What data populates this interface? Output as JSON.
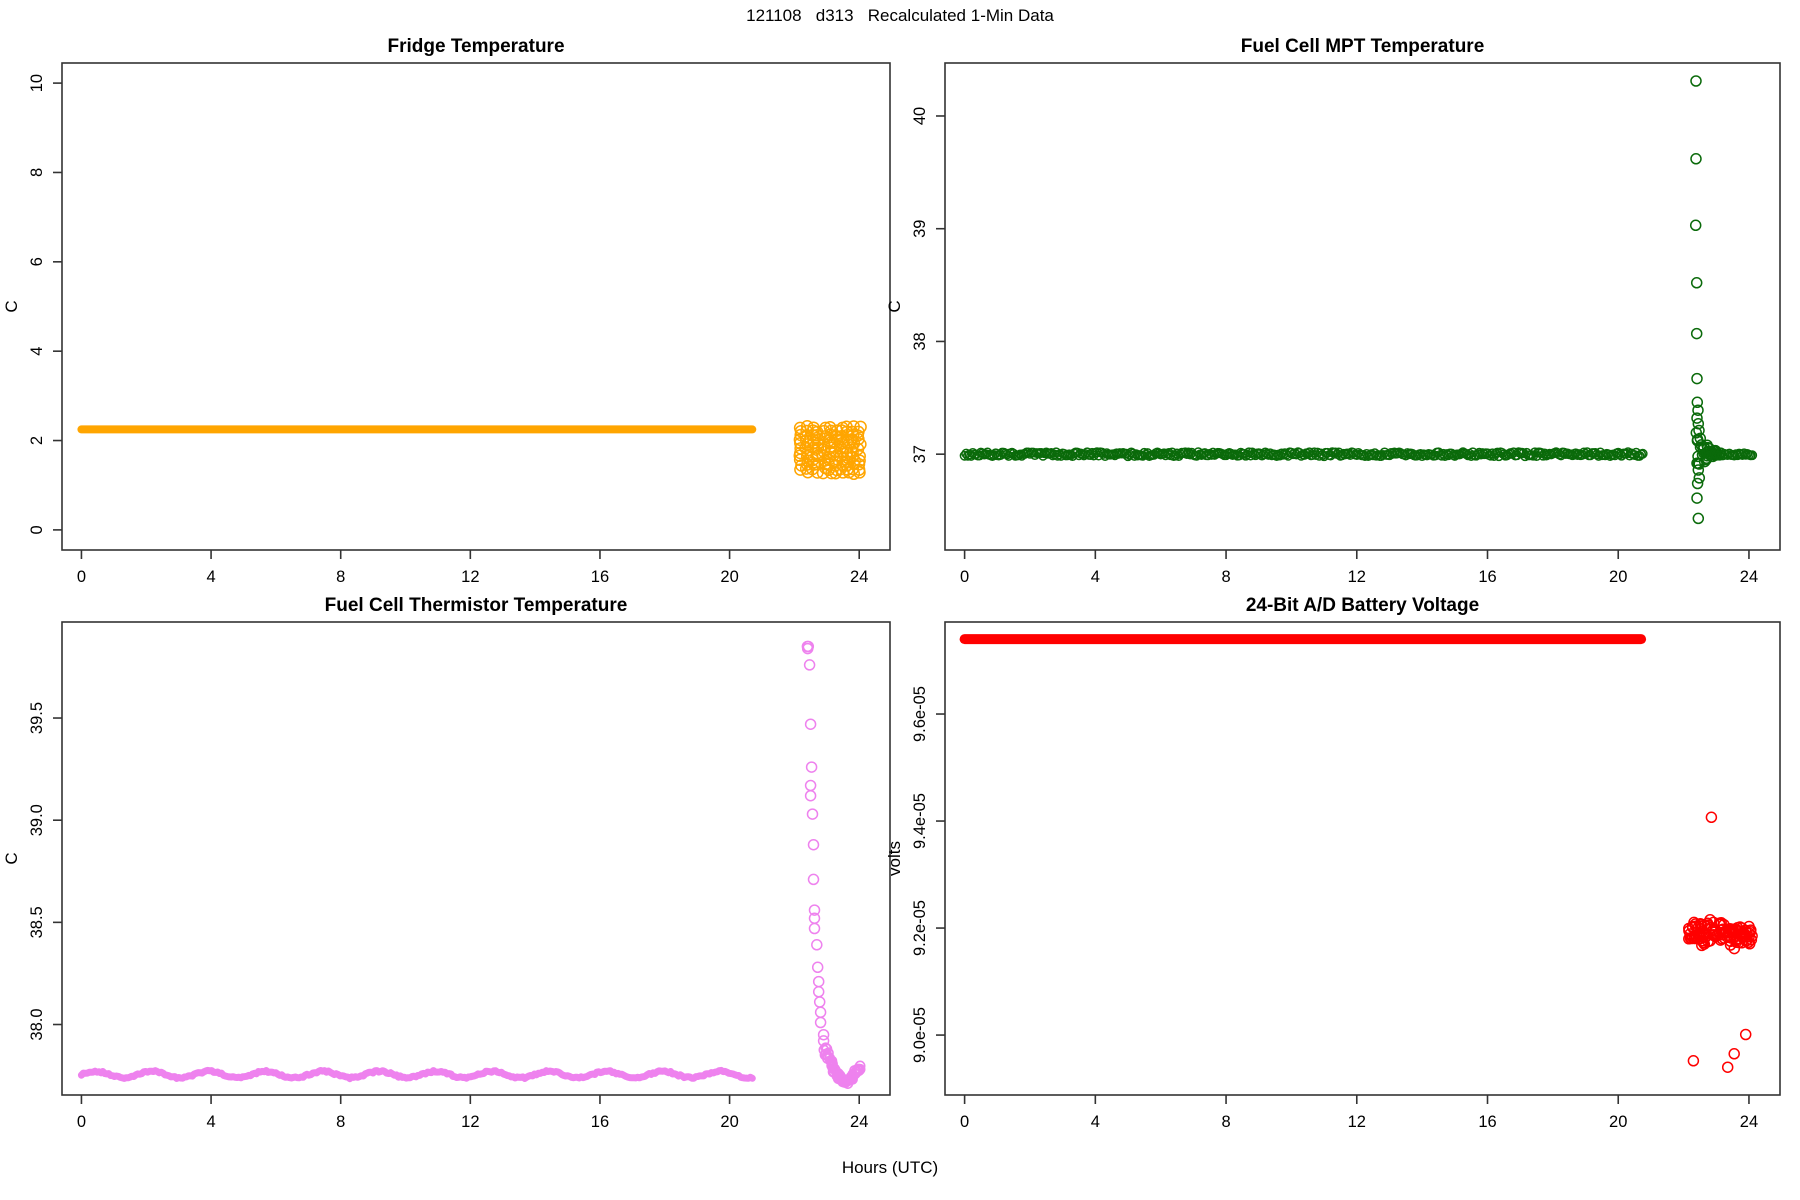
{
  "figure": {
    "title": "121108   d313   Recalculated 1-Min Data",
    "x_axis_label": "Hours (UTC)"
  },
  "x_axis": {
    "ticks": [
      0,
      4,
      8,
      12,
      16,
      20,
      24
    ],
    "xlim": [
      -0.6,
      24.95
    ]
  },
  "chart_data": [
    {
      "id": "fridge-temperature",
      "type": "scatter",
      "title": "Fridge Temperature",
      "ylabel": "C",
      "xlabel": "Hours (UTC)",
      "color": "#FFA500",
      "ylim": [
        -0.45,
        10.45
      ],
      "yticks": [
        0,
        2,
        4,
        6,
        8,
        10
      ],
      "ytick_labels": [
        "0",
        "2",
        "4",
        "6",
        "8",
        "10"
      ],
      "grid": false,
      "series": [
        {
          "name": "steady-line",
          "kind": "thick-line",
          "value": 2.25,
          "x_start": 0,
          "x_end": 20.7,
          "stroke_px": 8
        },
        {
          "name": "late-scatter-block",
          "kind": "cluster",
          "layout": "grid",
          "x_start": 22.2,
          "x_end": 24.0,
          "y_min": 1.27,
          "y_max": 2.3,
          "rows": 12,
          "n": 132,
          "r": 5.5
        }
      ]
    },
    {
      "id": "fuel-cell-mpt-temperature",
      "type": "scatter",
      "title": "Fuel Cell MPT Temperature",
      "ylabel": "C",
      "xlabel": "Hours (UTC)",
      "color": "#0A6A0A",
      "ylim": [
        36.15,
        40.47
      ],
      "yticks": [
        37,
        38,
        39,
        40
      ],
      "ytick_labels": [
        "37",
        "38",
        "39",
        "40"
      ],
      "grid": false,
      "series": [
        {
          "name": "steady-ring-line",
          "kind": "ring-line",
          "value": 37.0,
          "x_start": 0,
          "x_end": 20.8,
          "jitter": 0.018,
          "r": 4.2
        },
        {
          "name": "excursion-points",
          "kind": "points",
          "open": true,
          "r": 5,
          "pts": [
            [
              22.38,
              40.31
            ],
            [
              22.38,
              39.62
            ],
            [
              22.37,
              39.03
            ],
            [
              22.4,
              38.52
            ],
            [
              22.4,
              38.07
            ],
            [
              22.41,
              37.67
            ],
            [
              22.42,
              37.46
            ],
            [
              22.44,
              37.39
            ],
            [
              22.41,
              37.32
            ],
            [
              22.45,
              37.27
            ],
            [
              22.39,
              37.19
            ],
            [
              22.43,
              37.13
            ],
            [
              22.47,
              37.21
            ],
            [
              22.51,
              37.14
            ],
            [
              22.44,
              36.98
            ],
            [
              22.41,
              36.92
            ],
            [
              22.45,
              36.86
            ],
            [
              22.48,
              36.79
            ],
            [
              22.43,
              36.74
            ],
            [
              22.41,
              36.61
            ],
            [
              22.45,
              36.43
            ]
          ]
        },
        {
          "name": "excursion-taper",
          "kind": "cluster",
          "layout": "taper",
          "x_start": 22.4,
          "x_end": 23.15,
          "y_min": 36.88,
          "y_max": 37.14,
          "n": 30,
          "r": 5
        },
        {
          "name": "recovery-ring-line",
          "kind": "ring-line",
          "value": 37.0,
          "x_start": 22.55,
          "x_end": 24.15,
          "jitter": 0.014,
          "r": 4.2
        }
      ]
    },
    {
      "id": "fuel-cell-thermistor-temperature",
      "type": "scatter",
      "title": "Fuel Cell Thermistor Temperature",
      "ylabel": "C",
      "xlabel": "Hours (UTC)",
      "color": "#EE82EE",
      "ylim": [
        37.655,
        39.97
      ],
      "yticks": [
        38.0,
        38.5,
        39.0,
        39.5
      ],
      "ytick_labels": [
        "38.0",
        "38.5",
        "39.0",
        "39.5"
      ],
      "grid": false,
      "series": [
        {
          "name": "baseline-wiggle-line",
          "kind": "thick-line",
          "value": 37.755,
          "x_start": 0,
          "x_end": 20.7,
          "stroke_px": 7,
          "wiggle_amp": 0.016,
          "wiggle_period": 1.75
        },
        {
          "name": "spike-decay-points",
          "kind": "points",
          "open": true,
          "r": 5,
          "pts": [
            [
              22.4,
              39.85
            ],
            [
              22.43,
              39.85
            ],
            [
              22.41,
              39.84
            ],
            [
              22.47,
              39.76
            ],
            [
              22.5,
              39.47
            ],
            [
              22.53,
              39.26
            ],
            [
              22.5,
              39.17
            ],
            [
              22.5,
              39.12
            ],
            [
              22.56,
              39.03
            ],
            [
              22.59,
              38.88
            ],
            [
              22.59,
              38.71
            ],
            [
              22.62,
              38.56
            ],
            [
              22.62,
              38.52
            ],
            [
              22.62,
              38.47
            ],
            [
              22.69,
              38.39
            ],
            [
              22.72,
              38.28
            ],
            [
              22.75,
              38.21
            ],
            [
              22.75,
              38.16
            ],
            [
              22.78,
              38.11
            ],
            [
              22.81,
              38.06
            ],
            [
              22.81,
              38.01
            ],
            [
              22.9,
              37.95
            ],
            [
              22.9,
              37.92
            ]
          ]
        },
        {
          "name": "decay-tail-curve",
          "kind": "tail",
          "r": 4.6,
          "n_jitter": 3,
          "pts": [
            [
              22.95,
              37.88
            ],
            [
              23.0,
              37.86
            ],
            [
              23.05,
              37.84
            ],
            [
              23.1,
              37.82
            ],
            [
              23.15,
              37.8
            ],
            [
              23.2,
              37.785
            ],
            [
              23.25,
              37.77
            ],
            [
              23.3,
              37.755
            ],
            [
              23.35,
              37.745
            ],
            [
              23.4,
              37.735
            ],
            [
              23.45,
              37.73
            ],
            [
              23.5,
              37.725
            ],
            [
              23.55,
              37.72
            ],
            [
              23.6,
              37.72
            ],
            [
              23.65,
              37.725
            ],
            [
              23.7,
              37.73
            ],
            [
              23.75,
              37.74
            ],
            [
              23.8,
              37.75
            ],
            [
              23.85,
              37.76
            ],
            [
              23.9,
              37.77
            ],
            [
              23.95,
              37.78
            ],
            [
              24.0,
              37.785
            ],
            [
              24.05,
              37.79
            ]
          ]
        }
      ]
    },
    {
      "id": "battery-voltage",
      "type": "scatter",
      "title": "24-Bit A/D Battery Voltage",
      "ylabel": "volts",
      "xlabel": "Hours (UTC)",
      "color": "#FF0000",
      "ylim": [
        8.888e-05,
        9.772e-05
      ],
      "yticks": [
        9e-05,
        9.2e-05,
        9.4e-05,
        9.6e-05
      ],
      "ytick_labels": [
        "9.0e-05",
        "9.2e-05",
        "9.4e-05",
        "9.6e-05"
      ],
      "grid": false,
      "series": [
        {
          "name": "steady-line",
          "kind": "thick-line",
          "value": 9.74e-05,
          "x_start": 0,
          "x_end": 20.7,
          "stroke_px": 10
        },
        {
          "name": "late-noise-cluster",
          "kind": "cluster",
          "layout": "gauss",
          "x_start": 22.15,
          "x_end": 24.1,
          "y_center": 9.19e-05,
          "y_sd": 1.2e-07,
          "y_min": 8.94e-05,
          "y_max": 9.42e-05,
          "n": 112,
          "r": 5
        },
        {
          "name": "outlier-points",
          "kind": "points",
          "open": true,
          "r": 5,
          "pts": [
            [
              22.85,
              9.407e-05
            ],
            [
              22.3,
              8.952e-05
            ],
            [
              23.35,
              8.94e-05
            ],
            [
              23.9,
              9.001e-05
            ],
            [
              23.55,
              8.965e-05
            ]
          ]
        }
      ]
    }
  ]
}
